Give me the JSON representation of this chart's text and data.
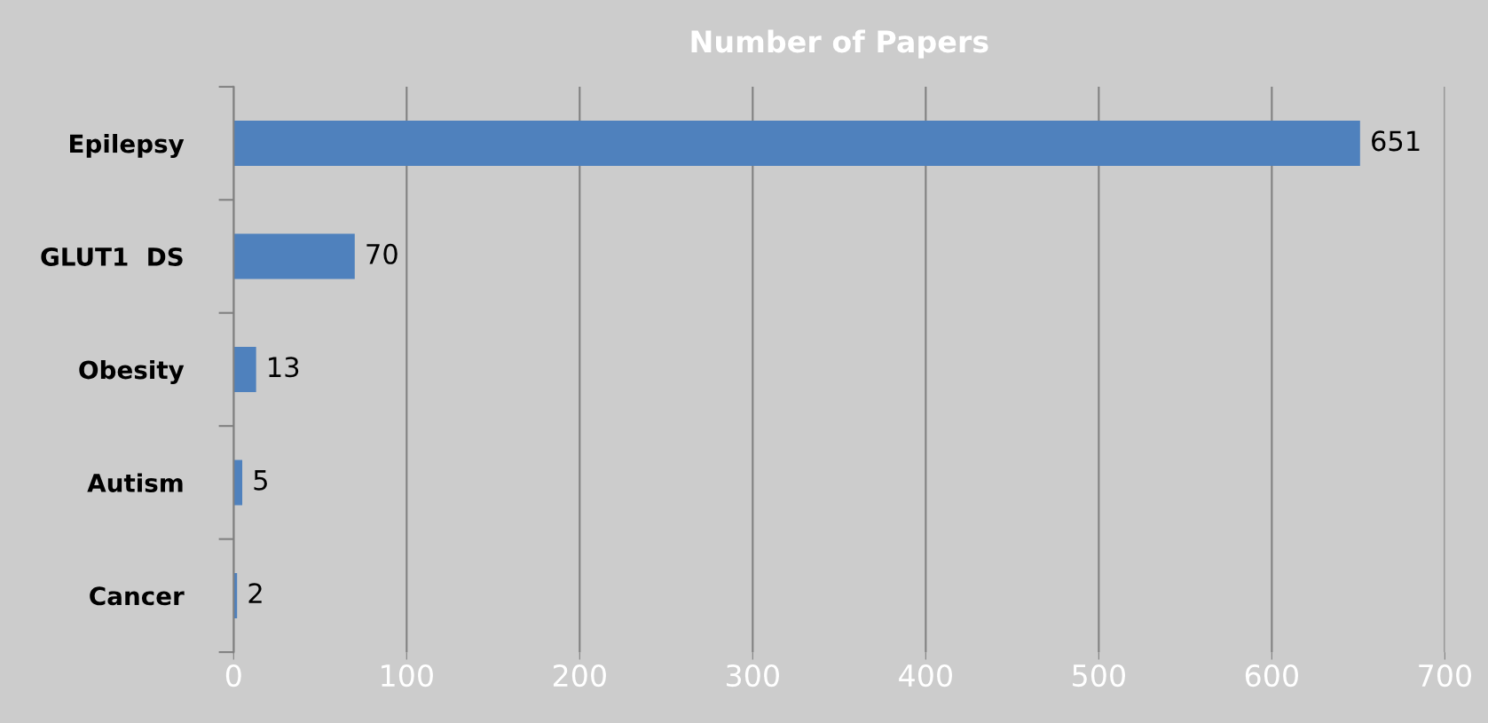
{
  "chart_data": {
    "type": "bar",
    "orientation": "horizontal",
    "title": "Number of Papers",
    "categories": [
      "Epilepsy",
      "GLUT1  DS",
      "Obesity",
      "Autism",
      "Cancer"
    ],
    "values": [
      651,
      70,
      13,
      5,
      2
    ],
    "color": "#4f81bd",
    "xlim": [
      0,
      700
    ],
    "xticks": [
      0,
      100,
      200,
      300,
      400,
      500,
      600,
      700
    ],
    "grid": "x",
    "data_labels": true
  }
}
